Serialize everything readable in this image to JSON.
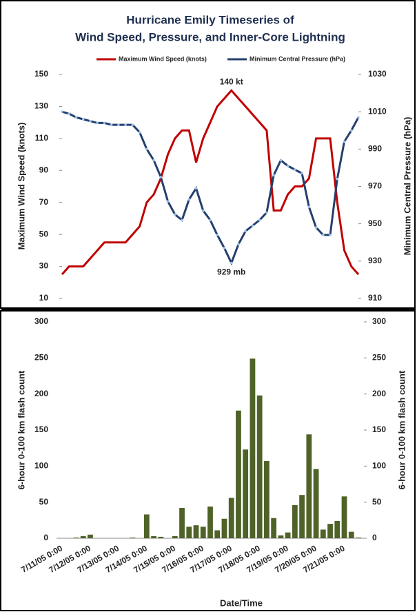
{
  "chart_data": [
    {
      "type": "line",
      "title": [
        "Hurricane Emily Timeseries of",
        "Wind Speed, Pressure, and Inner-Core Lightning"
      ],
      "ylabel": "Maximum Wind Speed (knots)",
      "y2label": "Minimum Central Pressure (hPa)",
      "ylim": [
        10,
        150
      ],
      "yticks": [
        10,
        30,
        50,
        70,
        90,
        110,
        130,
        150
      ],
      "y2lim": [
        910,
        1030
      ],
      "y2ticks": [
        910,
        930,
        950,
        970,
        990,
        1010,
        1030
      ],
      "annotations": [
        "140 kt",
        "929 mb"
      ],
      "series": [
        {
          "name": "Maximum Wind Speed (knots)",
          "color": "#c00000",
          "values": [
            25,
            30,
            30,
            30,
            35,
            40,
            45,
            45,
            45,
            45,
            50,
            55,
            70,
            75,
            85,
            100,
            110,
            115,
            115,
            95,
            110,
            120,
            130,
            135,
            140,
            135,
            130,
            125,
            120,
            115,
            65,
            65,
            75,
            80,
            80,
            85,
            110,
            110,
            110,
            70,
            40,
            30,
            25
          ]
        },
        {
          "name": "Minimum Central Pressure (hPa)",
          "color": "#243f6e",
          "axis": "y2",
          "values": [
            1010,
            1009,
            1007,
            1006,
            1005,
            1004,
            1004,
            1003,
            1003,
            1003,
            1003,
            999,
            990,
            984,
            975,
            962,
            955,
            952,
            963,
            969,
            957,
            952,
            944,
            937,
            929,
            939,
            946,
            949,
            952,
            956,
            976,
            984,
            981,
            979,
            977,
            959,
            948,
            944,
            944,
            974,
            994,
            1000,
            1007
          ]
        }
      ]
    },
    {
      "type": "bar",
      "ylabel": "6-hour 0-100 km flash count",
      "xlabel": "Date/Time",
      "ylim": [
        0,
        300
      ],
      "yticks": [
        0,
        50,
        100,
        150,
        200,
        250,
        300
      ],
      "color": "#4f6228",
      "categories": [
        "7/11/05 0:00",
        null,
        null,
        null,
        "7/12/05 0:00",
        null,
        null,
        null,
        "7/13/05 0:00",
        null,
        null,
        null,
        "7/14/05 0:00",
        null,
        null,
        null,
        "7/15/05 0:00",
        null,
        null,
        null,
        "7/16/05 0:00",
        null,
        null,
        null,
        "7/17/05 0:00",
        null,
        null,
        null,
        "7/18/05 0:00",
        null,
        null,
        null,
        "7/19/05 0:00",
        null,
        null,
        null,
        "7/20/05 0:00",
        null,
        null,
        null,
        "7/21/05 0:00",
        null,
        null
      ],
      "values": [
        0,
        0,
        1,
        3,
        5,
        0,
        0,
        0,
        0,
        0,
        1,
        0,
        33,
        3,
        2,
        0,
        3,
        42,
        16,
        18,
        16,
        44,
        11,
        27,
        56,
        177,
        123,
        249,
        198,
        107,
        28,
        4,
        8,
        46,
        60,
        144,
        96,
        12,
        20,
        24,
        58,
        9,
        1
      ]
    }
  ]
}
